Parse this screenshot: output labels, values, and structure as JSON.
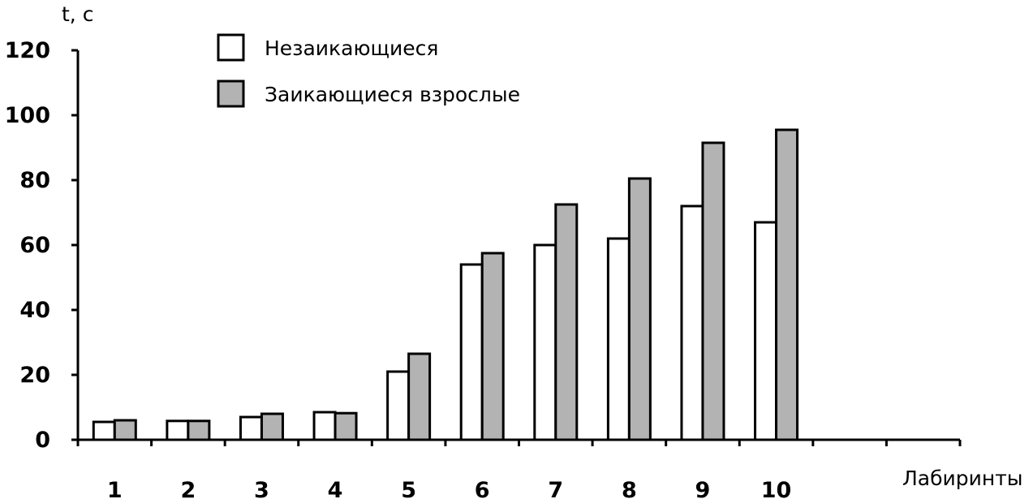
{
  "chart_data": {
    "type": "bar",
    "title": "",
    "ylabel": "t, с",
    "xlabel": "Лабиринты",
    "ylim": [
      0,
      120
    ],
    "yticks": [
      0,
      20,
      40,
      60,
      80,
      100,
      120
    ],
    "categories": [
      "1",
      "2",
      "3",
      "4",
      "5",
      "6",
      "7",
      "8",
      "9",
      "10",
      "",
      ""
    ],
    "series": [
      {
        "name": "Незаикающиеся",
        "color": "#ffffff",
        "values": [
          5.5,
          5.8,
          7,
          8.5,
          21,
          54,
          60,
          62,
          72,
          67,
          null,
          null
        ]
      },
      {
        "name": "Заикающиеся взрослые",
        "color": "#b3b3b3",
        "values": [
          6,
          5.8,
          8,
          8.2,
          26.5,
          57.5,
          72.5,
          80.5,
          91.5,
          95.5,
          null,
          null
        ]
      }
    ],
    "legend_position": "top-center",
    "grid": false
  }
}
